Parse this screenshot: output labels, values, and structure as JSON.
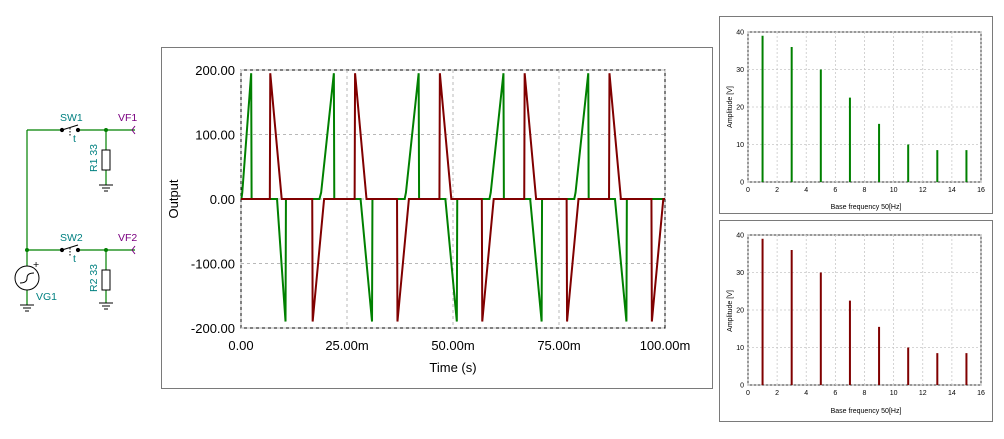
{
  "schematic": {
    "components": {
      "sw1": "SW1",
      "sw2": "SW2",
      "vf1": "VF1",
      "vf2": "VF2",
      "r1": "R1 33",
      "r2": "R2 33",
      "vg1": "VG1",
      "plus": "+",
      "t1": "t",
      "t2": "t"
    },
    "colors": {
      "wire": "#008000",
      "label": "#008080",
      "probe": "#7a0080",
      "body": "#000000"
    }
  },
  "main_chart": {
    "ylabel": "Output",
    "xlabel": "Time (s)",
    "y_ticks": [
      "200.00",
      "100.00",
      "0.00",
      "-100.00",
      "-200.00"
    ],
    "x_ticks": [
      "0.00",
      "25.00m",
      "50.00m",
      "75.00m",
      "100.00m"
    ]
  },
  "spectrum1": {
    "ylabel": "Amplitude [V]",
    "xlabel": "Base frequency 50[Hz]",
    "y_ticks": [
      "40",
      "30",
      "20",
      "10",
      "0"
    ],
    "x_ticks": [
      "0",
      "2",
      "4",
      "6",
      "8",
      "10",
      "12",
      "14",
      "16"
    ]
  },
  "spectrum2": {
    "ylabel": "Amplitude [V]",
    "xlabel": "Base frequency 50[Hz]",
    "y_ticks": [
      "40",
      "30",
      "20",
      "10",
      "0"
    ],
    "x_ticks": [
      "0",
      "2",
      "4",
      "6",
      "8",
      "10",
      "12",
      "14",
      "16"
    ]
  },
  "chart_data": [
    {
      "type": "line",
      "xlabel": "Time (s)",
      "ylabel": "Output",
      "xlim": [
        0,
        0.1
      ],
      "ylim": [
        -200,
        200
      ],
      "grid": true,
      "x_unit": "s",
      "series": [
        {
          "color": "#008000",
          "description": "positive ramp pulses then negative ramp pulses, period 20ms",
          "points": [
            [
              0,
              0
            ],
            [
              0.0001,
              0
            ],
            [
              0.0003,
              10
            ],
            [
              0.0024,
              195
            ],
            [
              0.0025,
              0
            ],
            [
              0.0085,
              0
            ],
            [
              0.0105,
              -190
            ],
            [
              0.0106,
              0
            ],
            [
              0.0185,
              0
            ],
            [
              0.0189,
              10
            ],
            [
              0.0219,
              195
            ],
            [
              0.022,
              0
            ],
            [
              0.0282,
              0
            ],
            [
              0.0309,
              -190
            ],
            [
              0.031,
              0
            ],
            [
              0.0386,
              0
            ],
            [
              0.0389,
              10
            ],
            [
              0.0419,
              195
            ],
            [
              0.042,
              0
            ],
            [
              0.0482,
              0
            ],
            [
              0.0509,
              -190
            ],
            [
              0.051,
              0
            ],
            [
              0.0586,
              0
            ],
            [
              0.0589,
              10
            ],
            [
              0.0619,
              195
            ],
            [
              0.062,
              0
            ],
            [
              0.0682,
              0
            ],
            [
              0.0709,
              -190
            ],
            [
              0.071,
              0
            ],
            [
              0.0786,
              0
            ],
            [
              0.0789,
              10
            ],
            [
              0.0819,
              195
            ],
            [
              0.082,
              0
            ],
            [
              0.0882,
              0
            ],
            [
              0.0909,
              -190
            ],
            [
              0.091,
              0
            ],
            [
              0.1,
              0
            ]
          ]
        },
        {
          "color": "#800000",
          "description": "positive ramp down pulses then negative ramp up pulses, period 20ms",
          "points": [
            [
              0,
              0
            ],
            [
              0.0068,
              0
            ],
            [
              0.0069,
              195
            ],
            [
              0.0096,
              0
            ],
            [
              0.0168,
              0
            ],
            [
              0.0169,
              -190
            ],
            [
              0.0196,
              0
            ],
            [
              0.0268,
              0
            ],
            [
              0.0269,
              195
            ],
            [
              0.0296,
              0
            ],
            [
              0.0368,
              0
            ],
            [
              0.0369,
              -190
            ],
            [
              0.0396,
              0
            ],
            [
              0.0468,
              0
            ],
            [
              0.0469,
              195
            ],
            [
              0.0496,
              0
            ],
            [
              0.0568,
              0
            ],
            [
              0.0569,
              -190
            ],
            [
              0.0596,
              0
            ],
            [
              0.0668,
              0
            ],
            [
              0.0669,
              195
            ],
            [
              0.0696,
              0
            ],
            [
              0.0768,
              0
            ],
            [
              0.0769,
              -190
            ],
            [
              0.0796,
              0
            ],
            [
              0.0868,
              0
            ],
            [
              0.0869,
              195
            ],
            [
              0.0896,
              0
            ],
            [
              0.0968,
              0
            ],
            [
              0.0969,
              -190
            ],
            [
              0.0996,
              0
            ],
            [
              0.1,
              0
            ]
          ]
        }
      ]
    },
    {
      "type": "bar",
      "xlabel": "Base frequency 50[Hz]",
      "ylabel": "Amplitude [V]",
      "xlim": [
        0,
        16
      ],
      "ylim": [
        0,
        40
      ],
      "grid": true,
      "color": "#008000",
      "x": [
        1,
        3,
        5,
        7,
        9,
        11,
        13,
        15
      ],
      "values": [
        39,
        36,
        30,
        22.5,
        15.5,
        10,
        8.5,
        8.5
      ]
    },
    {
      "type": "bar",
      "xlabel": "Base frequency 50[Hz]",
      "ylabel": "Amplitude [V]",
      "xlim": [
        0,
        16
      ],
      "ylim": [
        0,
        40
      ],
      "grid": true,
      "color": "#800000",
      "x": [
        1,
        3,
        5,
        7,
        9,
        11,
        13,
        15
      ],
      "values": [
        39,
        36,
        30,
        22.5,
        15.5,
        10,
        8.5,
        8.5
      ]
    }
  ]
}
